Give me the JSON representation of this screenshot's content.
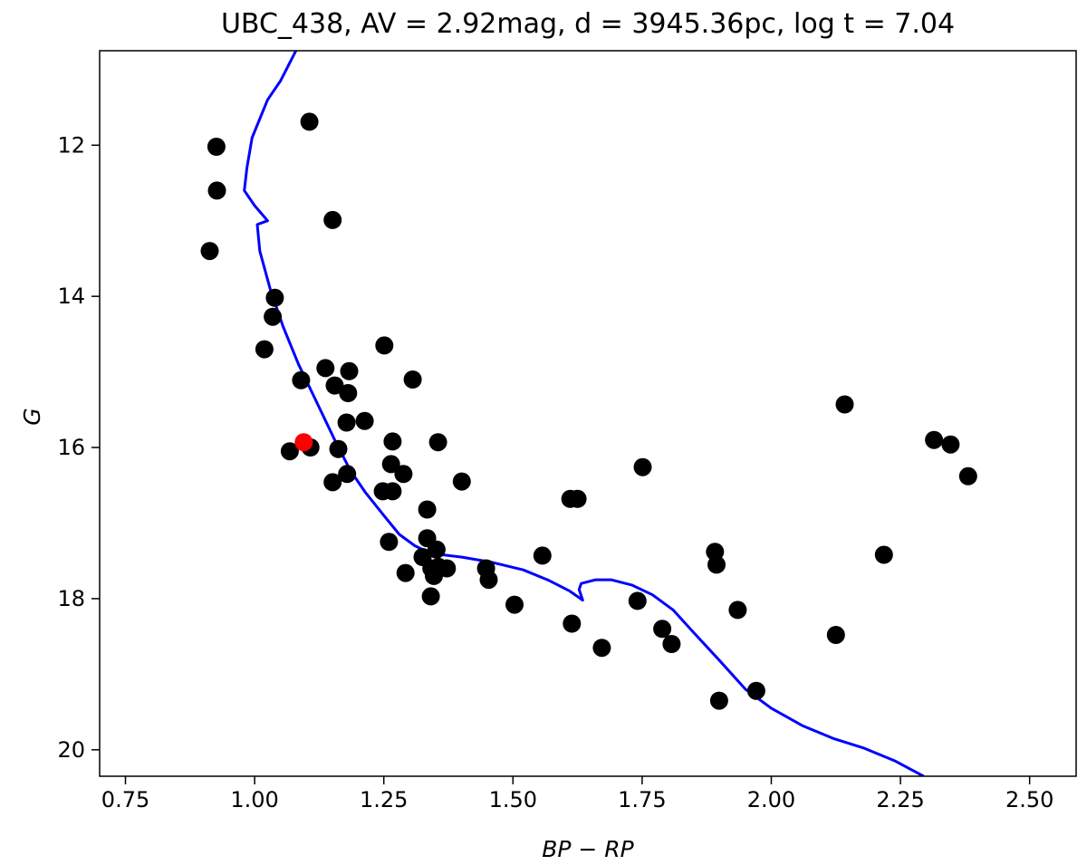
{
  "chart_data": {
    "type": "scatter",
    "title": "UBC_438, AV = 2.92mag, d = 3945.36pc, log t = 7.04",
    "xlabel": "BP − RP",
    "ylabel": "G",
    "xlim": [
      0.7,
      2.59
    ],
    "ylim": [
      20.35,
      10.75
    ],
    "y_inverted": true,
    "grid": false,
    "xticks": [
      0.75,
      1.0,
      1.25,
      1.5,
      1.75,
      2.0,
      2.25,
      2.5
    ],
    "xtick_labels": [
      "0.75",
      "1.00",
      "1.25",
      "1.50",
      "1.75",
      "2.00",
      "2.25",
      "2.50"
    ],
    "yticks": [
      12,
      14,
      16,
      18,
      20
    ],
    "ytick_labels": [
      "12",
      "14",
      "16",
      "18",
      "20"
    ],
    "colors": {
      "members": "#000000",
      "highlight": "#ff0000",
      "isochrone": "#0000ff"
    },
    "series": [
      {
        "kind": "scatter",
        "color": "#000000",
        "points": [
          [
            0.926,
            12.02
          ],
          [
            0.927,
            12.6
          ],
          [
            0.913,
            13.4
          ],
          [
            1.106,
            11.69
          ],
          [
            1.151,
            12.99
          ],
          [
            1.039,
            14.02
          ],
          [
            1.035,
            14.27
          ],
          [
            1.019,
            14.7
          ],
          [
            1.09,
            15.11
          ],
          [
            1.068,
            16.05
          ],
          [
            1.108,
            16.0
          ],
          [
            1.137,
            14.95
          ],
          [
            1.155,
            15.18
          ],
          [
            1.183,
            14.99
          ],
          [
            1.181,
            15.28
          ],
          [
            1.213,
            15.65
          ],
          [
            1.178,
            15.67
          ],
          [
            1.162,
            16.02
          ],
          [
            1.179,
            16.35
          ],
          [
            1.151,
            16.46
          ],
          [
            1.251,
            14.65
          ],
          [
            1.306,
            15.1
          ],
          [
            1.267,
            15.92
          ],
          [
            1.264,
            16.22
          ],
          [
            1.288,
            16.35
          ],
          [
            1.248,
            16.58
          ],
          [
            1.267,
            16.58
          ],
          [
            1.26,
            17.25
          ],
          [
            1.334,
            16.82
          ],
          [
            1.355,
            15.93
          ],
          [
            1.401,
            16.45
          ],
          [
            1.334,
            17.2
          ],
          [
            1.352,
            17.35
          ],
          [
            1.325,
            17.45
          ],
          [
            1.292,
            17.66
          ],
          [
            1.342,
            17.6
          ],
          [
            1.356,
            17.58
          ],
          [
            1.372,
            17.6
          ],
          [
            1.347,
            17.7
          ],
          [
            1.341,
            17.97
          ],
          [
            1.448,
            17.6
          ],
          [
            1.453,
            17.75
          ],
          [
            1.503,
            18.08
          ],
          [
            1.557,
            17.43
          ],
          [
            1.611,
            16.68
          ],
          [
            1.625,
            16.68
          ],
          [
            1.614,
            18.33
          ],
          [
            1.672,
            18.65
          ],
          [
            1.751,
            16.26
          ],
          [
            1.741,
            18.03
          ],
          [
            1.789,
            18.4
          ],
          [
            1.807,
            18.6
          ],
          [
            1.891,
            17.38
          ],
          [
            1.894,
            17.55
          ],
          [
            1.899,
            19.35
          ],
          [
            1.935,
            18.15
          ],
          [
            1.971,
            19.22
          ],
          [
            2.142,
            15.43
          ],
          [
            2.125,
            18.48
          ],
          [
            2.218,
            17.42
          ],
          [
            2.315,
            15.9
          ],
          [
            2.347,
            15.96
          ],
          [
            2.381,
            16.38
          ]
        ]
      },
      {
        "kind": "scatter",
        "color": "#ff0000",
        "points": [
          [
            1.095,
            15.93
          ]
        ]
      },
      {
        "kind": "line",
        "color": "#0000ff",
        "points": [
          [
            1.08,
            10.75
          ],
          [
            1.05,
            11.15
          ],
          [
            1.025,
            11.4
          ],
          [
            0.995,
            11.9
          ],
          [
            0.985,
            12.3
          ],
          [
            0.98,
            12.6
          ],
          [
            1.0,
            12.8
          ],
          [
            1.025,
            13.0
          ],
          [
            1.005,
            13.05
          ],
          [
            1.01,
            13.4
          ],
          [
            1.03,
            13.9
          ],
          [
            1.055,
            14.4
          ],
          [
            1.085,
            14.9
          ],
          [
            1.12,
            15.4
          ],
          [
            1.155,
            15.9
          ],
          [
            1.185,
            16.3
          ],
          [
            1.215,
            16.6
          ],
          [
            1.25,
            16.9
          ],
          [
            1.28,
            17.15
          ],
          [
            1.31,
            17.3
          ],
          [
            1.34,
            17.4
          ],
          [
            1.4,
            17.45
          ],
          [
            1.46,
            17.52
          ],
          [
            1.52,
            17.62
          ],
          [
            1.57,
            17.76
          ],
          [
            1.61,
            17.9
          ],
          [
            1.635,
            18.02
          ],
          [
            1.628,
            17.88
          ],
          [
            1.632,
            17.8
          ],
          [
            1.66,
            17.75
          ],
          [
            1.69,
            17.75
          ],
          [
            1.73,
            17.82
          ],
          [
            1.77,
            17.95
          ],
          [
            1.81,
            18.15
          ],
          [
            1.85,
            18.45
          ],
          [
            1.9,
            18.82
          ],
          [
            1.95,
            19.2
          ],
          [
            2.0,
            19.45
          ],
          [
            2.06,
            19.68
          ],
          [
            2.12,
            19.85
          ],
          [
            2.18,
            19.98
          ],
          [
            2.24,
            20.15
          ],
          [
            2.295,
            20.35
          ]
        ]
      }
    ]
  }
}
